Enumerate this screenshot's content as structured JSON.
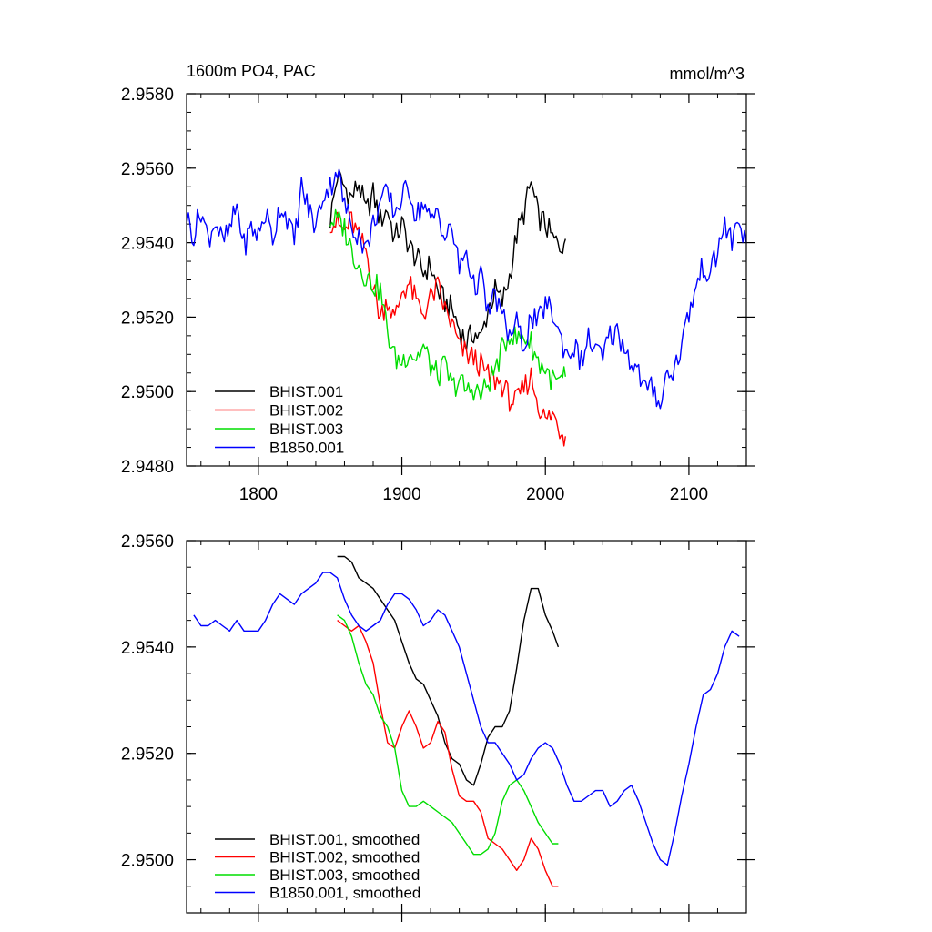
{
  "chart_data": [
    {
      "type": "line",
      "title_left": "1600m PO4, PAC",
      "title_right": "mmol/m^3",
      "xlim": [
        1750,
        2140
      ],
      "ylim": [
        2.948,
        2.958
      ],
      "x_ticks": [
        1800,
        1900,
        2000,
        2100
      ],
      "x_tick_labels": [
        "1800",
        "1900",
        "2000",
        "2100"
      ],
      "y_ticks": [
        2.948,
        2.95,
        2.952,
        2.954,
        2.956,
        2.958
      ],
      "y_tick_labels": [
        "2.9480",
        "2.9500",
        "2.9520",
        "2.9540",
        "2.9560",
        "2.9580"
      ],
      "legend_position": "bottom-left",
      "series": [
        {
          "name": "BHIST.001",
          "color": "#000000",
          "x": [
            1850,
            1855,
            1860,
            1865,
            1870,
            1875,
            1880,
            1885,
            1890,
            1895,
            1900,
            1905,
            1910,
            1915,
            1920,
            1925,
            1930,
            1935,
            1940,
            1945,
            1950,
            1955,
            1960,
            1965,
            1970,
            1975,
            1980,
            1985,
            1990,
            1995,
            2000,
            2005,
            2010,
            2014
          ],
          "y": [
            2.9546,
            2.9558,
            2.9555,
            2.9552,
            2.9556,
            2.9548,
            2.9553,
            2.9546,
            2.9549,
            2.9541,
            2.9545,
            2.9539,
            2.9536,
            2.9532,
            2.9534,
            2.9527,
            2.9524,
            2.9522,
            2.9517,
            2.9513,
            2.9516,
            2.9514,
            2.9522,
            2.9527,
            2.9524,
            2.9531,
            2.9542,
            2.9548,
            2.9556,
            2.9547,
            2.9545,
            2.9541,
            2.9539,
            2.9541
          ]
        },
        {
          "name": "BHIST.002",
          "color": "#ff0000",
          "x": [
            1850,
            1855,
            1860,
            1865,
            1870,
            1875,
            1880,
            1885,
            1890,
            1895,
            1900,
            1905,
            1910,
            1915,
            1920,
            1925,
            1930,
            1935,
            1940,
            1945,
            1950,
            1955,
            1960,
            1965,
            1970,
            1975,
            1980,
            1985,
            1990,
            1995,
            2000,
            2005,
            2010,
            2014
          ],
          "y": [
            2.9546,
            2.9545,
            2.9543,
            2.9546,
            2.9541,
            2.9538,
            2.9528,
            2.952,
            2.9525,
            2.9519,
            2.9527,
            2.9529,
            2.9524,
            2.9521,
            2.9525,
            2.9528,
            2.9522,
            2.9518,
            2.9512,
            2.951,
            2.9509,
            2.9507,
            2.9504,
            2.9503,
            2.9502,
            2.9498,
            2.9497,
            2.9501,
            2.9504,
            2.9497,
            2.9492,
            2.9494,
            2.949,
            2.9488
          ]
        },
        {
          "name": "BHIST.003",
          "color": "#00dd00",
          "x": [
            1850,
            1855,
            1860,
            1865,
            1870,
            1875,
            1880,
            1885,
            1890,
            1895,
            1900,
            1905,
            1910,
            1915,
            1920,
            1925,
            1930,
            1935,
            1940,
            1945,
            1950,
            1955,
            1960,
            1965,
            1970,
            1975,
            1980,
            1985,
            1990,
            1995,
            2000,
            2005,
            2010,
            2014
          ],
          "y": [
            2.9546,
            2.9546,
            2.9544,
            2.9538,
            2.9534,
            2.9531,
            2.9529,
            2.9527,
            2.9516,
            2.9509,
            2.9508,
            2.9511,
            2.9509,
            2.9512,
            2.9507,
            2.9504,
            2.9507,
            2.9501,
            2.9503,
            2.95,
            2.9501,
            2.9499,
            2.9502,
            2.9506,
            2.9511,
            2.9516,
            2.9514,
            2.9515,
            2.9513,
            2.9508,
            2.9506,
            2.9503,
            2.9502,
            2.9504
          ]
        },
        {
          "name": "B1850.001",
          "color": "#0000ff",
          "x": [
            1750,
            1755,
            1760,
            1765,
            1770,
            1775,
            1780,
            1785,
            1790,
            1795,
            1800,
            1805,
            1810,
            1815,
            1820,
            1825,
            1830,
            1835,
            1840,
            1845,
            1850,
            1855,
            1860,
            1865,
            1870,
            1875,
            1880,
            1885,
            1890,
            1895,
            1900,
            1905,
            1910,
            1915,
            1920,
            1925,
            1930,
            1935,
            1940,
            1945,
            1950,
            1955,
            1960,
            1965,
            1970,
            1975,
            1980,
            1985,
            1990,
            1995,
            2000,
            2005,
            2010,
            2015,
            2020,
            2025,
            2030,
            2035,
            2040,
            2045,
            2050,
            2055,
            2060,
            2065,
            2070,
            2075,
            2080,
            2085,
            2090,
            2095,
            2100,
            2105,
            2110,
            2115,
            2120,
            2125,
            2130,
            2135,
            2140
          ],
          "y": [
            2.9547,
            2.9542,
            2.9549,
            2.9541,
            2.9546,
            2.954,
            2.9543,
            2.955,
            2.9539,
            2.9544,
            2.9542,
            2.9548,
            2.9541,
            2.955,
            2.9547,
            2.954,
            2.9555,
            2.9549,
            2.9544,
            2.9553,
            2.9555,
            2.956,
            2.955,
            2.9545,
            2.9542,
            2.9538,
            2.9545,
            2.9551,
            2.9553,
            2.9548,
            2.9552,
            2.9555,
            2.9547,
            2.9551,
            2.9545,
            2.9549,
            2.9541,
            2.9544,
            2.9533,
            2.9538,
            2.9528,
            2.9531,
            2.9521,
            2.9526,
            2.952,
            2.9515,
            2.9518,
            2.9512,
            2.952,
            2.9518,
            2.9524,
            2.9521,
            2.9515,
            2.951,
            2.9512,
            2.9508,
            2.9514,
            2.9511,
            2.9509,
            2.9515,
            2.9516,
            2.9512,
            2.9508,
            2.9505,
            2.95,
            2.9501,
            2.9497,
            2.9505,
            2.9506,
            2.9513,
            2.9521,
            2.9528,
            2.9534,
            2.9531,
            2.9538,
            2.9545,
            2.954,
            2.9546,
            2.954
          ]
        }
      ]
    },
    {
      "type": "line",
      "xlim": [
        1750,
        2140
      ],
      "ylim": [
        2.949,
        2.956
      ],
      "x_ticks": [
        1800,
        1900,
        2000,
        2100
      ],
      "x_tick_labels": [],
      "y_ticks": [
        2.95,
        2.952,
        2.954,
        2.956
      ],
      "y_tick_labels": [
        "2.9500",
        "2.9520",
        "2.9540",
        "2.9560"
      ],
      "legend_position": "bottom-left",
      "series": [
        {
          "name": "BHIST.001, smoothed",
          "color": "#000000",
          "x": [
            1855,
            1860,
            1865,
            1870,
            1875,
            1880,
            1885,
            1890,
            1895,
            1900,
            1905,
            1910,
            1915,
            1920,
            1925,
            1930,
            1935,
            1940,
            1945,
            1950,
            1955,
            1960,
            1965,
            1970,
            1975,
            1980,
            1985,
            1990,
            1995,
            2000,
            2005,
            2009
          ],
          "y": [
            2.9557,
            2.9557,
            2.9556,
            2.9553,
            2.9552,
            2.9551,
            2.9549,
            2.9547,
            2.9545,
            2.9541,
            2.9537,
            2.9534,
            2.9533,
            2.953,
            2.9527,
            2.9522,
            2.9519,
            2.9518,
            2.9515,
            2.9514,
            2.9518,
            2.9523,
            2.9525,
            2.9525,
            2.9528,
            2.9536,
            2.9545,
            2.9551,
            2.9551,
            2.9546,
            2.9543,
            2.954
          ]
        },
        {
          "name": "BHIST.002, smoothed",
          "color": "#ff0000",
          "x": [
            1855,
            1860,
            1865,
            1870,
            1875,
            1880,
            1885,
            1890,
            1895,
            1900,
            1905,
            1910,
            1915,
            1920,
            1925,
            1930,
            1935,
            1940,
            1945,
            1950,
            1955,
            1960,
            1965,
            1970,
            1975,
            1980,
            1985,
            1990,
            1995,
            2000,
            2005,
            2009
          ],
          "y": [
            2.9545,
            2.9544,
            2.9543,
            2.9544,
            2.9541,
            2.9537,
            2.9529,
            2.9522,
            2.9521,
            2.9525,
            2.9528,
            2.9525,
            2.9521,
            2.9522,
            2.9526,
            2.9524,
            2.9517,
            2.9512,
            2.9511,
            2.9511,
            2.9509,
            2.9504,
            2.9503,
            2.9502,
            2.95,
            2.9498,
            2.95,
            2.9504,
            2.9502,
            2.9498,
            2.9495,
            2.9495
          ]
        },
        {
          "name": "BHIST.003, smoothed",
          "color": "#00dd00",
          "x": [
            1855,
            1860,
            1865,
            1870,
            1875,
            1880,
            1885,
            1890,
            1895,
            1900,
            1905,
            1910,
            1915,
            1920,
            1925,
            1930,
            1935,
            1940,
            1945,
            1950,
            1955,
            1960,
            1965,
            1970,
            1975,
            1980,
            1985,
            1990,
            1995,
            2000,
            2005,
            2009
          ],
          "y": [
            2.9546,
            2.9545,
            2.9542,
            2.9537,
            2.9533,
            2.9531,
            2.9527,
            2.9525,
            2.9521,
            2.9513,
            2.951,
            2.951,
            2.9511,
            2.951,
            2.9509,
            2.9508,
            2.9507,
            2.9505,
            2.9503,
            2.9501,
            2.9501,
            2.9502,
            2.9505,
            2.9511,
            2.9514,
            2.9515,
            2.9513,
            2.951,
            2.9507,
            2.9505,
            2.9503,
            2.9503
          ]
        },
        {
          "name": "B1850.001, smoothed",
          "color": "#0000ff",
          "x": [
            1755,
            1760,
            1765,
            1770,
            1775,
            1780,
            1785,
            1790,
            1795,
            1800,
            1805,
            1810,
            1815,
            1820,
            1825,
            1830,
            1835,
            1840,
            1845,
            1850,
            1855,
            1860,
            1865,
            1870,
            1875,
            1880,
            1885,
            1890,
            1895,
            1900,
            1905,
            1910,
            1915,
            1920,
            1925,
            1930,
            1935,
            1940,
            1945,
            1950,
            1955,
            1960,
            1965,
            1970,
            1975,
            1980,
            1985,
            1990,
            1995,
            2000,
            2005,
            2010,
            2015,
            2020,
            2025,
            2030,
            2035,
            2040,
            2045,
            2050,
            2055,
            2060,
            2065,
            2070,
            2075,
            2080,
            2085,
            2090,
            2095,
            2100,
            2105,
            2110,
            2115,
            2120,
            2125,
            2130,
            2135
          ],
          "y": [
            2.9546,
            2.9544,
            2.9544,
            2.9545,
            2.9544,
            2.9543,
            2.9545,
            2.9543,
            2.9543,
            2.9543,
            2.9545,
            2.9548,
            2.955,
            2.9549,
            2.9548,
            2.955,
            2.9551,
            2.9552,
            2.9554,
            2.9554,
            2.9553,
            2.9549,
            2.9546,
            2.9544,
            2.9543,
            2.9544,
            2.9545,
            2.9548,
            2.955,
            2.955,
            2.9549,
            2.9547,
            2.9544,
            2.9545,
            2.9547,
            2.9546,
            2.9543,
            2.954,
            2.9535,
            2.953,
            2.9525,
            2.9522,
            2.9522,
            2.952,
            2.9518,
            2.9515,
            2.9516,
            2.9519,
            2.9521,
            2.9522,
            2.9521,
            2.9518,
            2.9514,
            2.9511,
            2.9511,
            2.9512,
            2.9513,
            2.9513,
            2.951,
            2.9511,
            2.9513,
            2.9514,
            2.9511,
            2.9507,
            2.9503,
            2.95,
            2.9499,
            2.9505,
            2.9512,
            2.9518,
            2.9525,
            2.9531,
            2.9532,
            2.9535,
            2.954,
            2.9543,
            2.9542
          ]
        }
      ]
    }
  ]
}
